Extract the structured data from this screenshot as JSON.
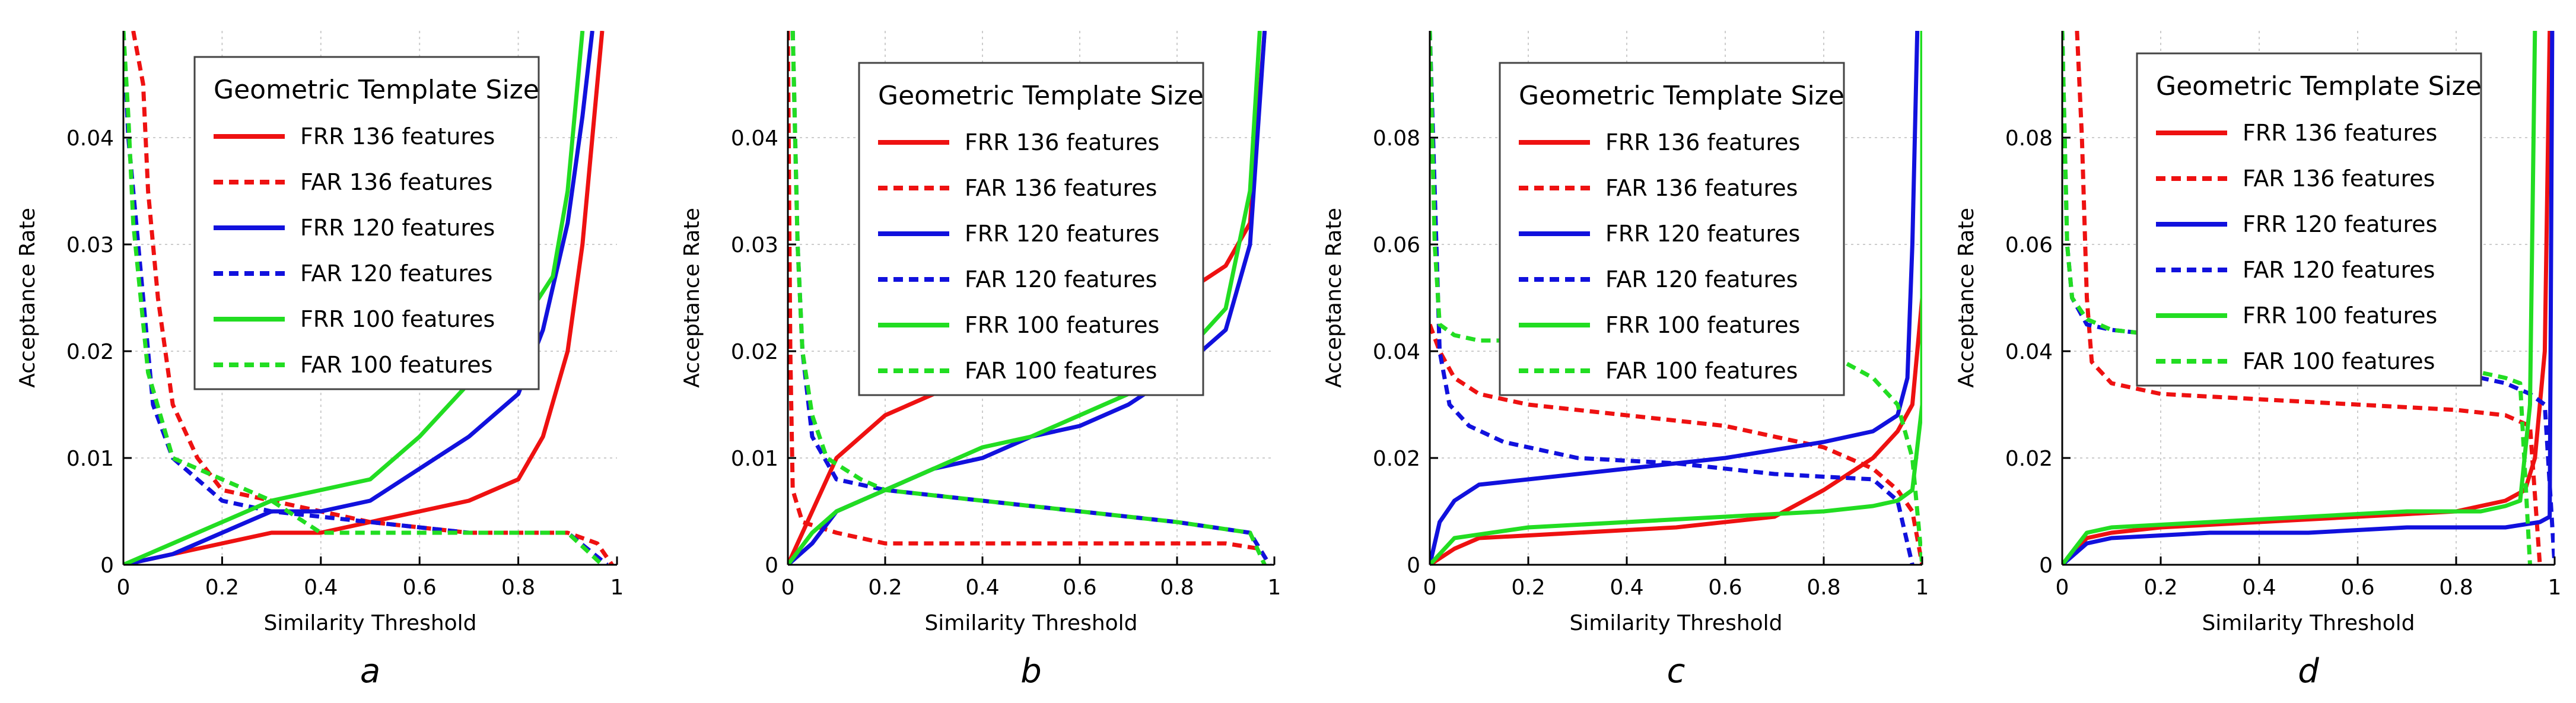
{
  "legend_title": "Geometric Template Size",
  "series_styles": {
    "FRR 136 features": {
      "color": "#ee1111",
      "dash": false
    },
    "FAR 136 features": {
      "color": "#ee1111",
      "dash": true
    },
    "FRR 120 features": {
      "color": "#1111dd",
      "dash": false
    },
    "FAR 120 features": {
      "color": "#1111dd",
      "dash": true
    },
    "FRR 100 features": {
      "color": "#22dd22",
      "dash": false
    },
    "FAR 100 features": {
      "color": "#22dd22",
      "dash": true
    }
  },
  "chart_data": [
    {
      "type": "line",
      "panel_label": "a",
      "xlabel": "Similarity Threshold",
      "ylabel": "Acceptance Rate",
      "xlim": [
        0,
        1
      ],
      "ylim": [
        0,
        0.05
      ],
      "xticks": [
        "0",
        "0.2",
        "0.4",
        "0.6",
        "0.8",
        "1"
      ],
      "yticks": [
        "0",
        "0.01",
        "0.02",
        "0.03",
        "0.04"
      ],
      "legend_title": "Geometric Template Size",
      "series": [
        {
          "name": "FRR 136 features",
          "x": [
            0,
            0.1,
            0.2,
            0.3,
            0.4,
            0.5,
            0.6,
            0.7,
            0.8,
            0.85,
            0.9,
            0.93,
            0.95,
            0.97
          ],
          "y": [
            0,
            0.001,
            0.002,
            0.003,
            0.003,
            0.004,
            0.005,
            0.006,
            0.008,
            0.012,
            0.02,
            0.03,
            0.04,
            0.05
          ]
        },
        {
          "name": "FAR 136 features",
          "x": [
            0.02,
            0.04,
            0.05,
            0.07,
            0.1,
            0.15,
            0.2,
            0.3,
            0.5,
            0.7,
            0.9,
            0.96,
            0.99
          ],
          "y": [
            0.05,
            0.045,
            0.035,
            0.025,
            0.015,
            0.01,
            0.007,
            0.006,
            0.004,
            0.003,
            0.003,
            0.002,
            0
          ]
        },
        {
          "name": "FRR 120 features",
          "x": [
            0,
            0.1,
            0.2,
            0.3,
            0.4,
            0.5,
            0.6,
            0.7,
            0.8,
            0.85,
            0.9,
            0.93,
            0.95
          ],
          "y": [
            0,
            0.001,
            0.003,
            0.005,
            0.005,
            0.006,
            0.009,
            0.012,
            0.016,
            0.022,
            0.032,
            0.042,
            0.05
          ]
        },
        {
          "name": "FAR 120 features",
          "x": [
            0,
            0.01,
            0.02,
            0.04,
            0.06,
            0.1,
            0.15,
            0.2,
            0.3,
            0.5,
            0.7,
            0.9,
            0.98
          ],
          "y": [
            0.05,
            0.04,
            0.035,
            0.025,
            0.015,
            0.01,
            0.008,
            0.006,
            0.005,
            0.004,
            0.003,
            0.003,
            0
          ]
        },
        {
          "name": "FRR 100 features",
          "x": [
            0,
            0.1,
            0.2,
            0.3,
            0.4,
            0.5,
            0.6,
            0.7,
            0.8,
            0.87,
            0.9,
            0.93
          ],
          "y": [
            0,
            0.002,
            0.004,
            0.006,
            0.007,
            0.008,
            0.012,
            0.017,
            0.022,
            0.027,
            0.035,
            0.05
          ]
        },
        {
          "name": "FAR 100 features",
          "x": [
            0,
            0.01,
            0.02,
            0.05,
            0.1,
            0.2,
            0.3,
            0.4,
            0.5,
            0.7,
            0.9,
            0.97
          ],
          "y": [
            0.05,
            0.042,
            0.032,
            0.018,
            0.01,
            0.008,
            0.006,
            0.003,
            0.003,
            0.003,
            0.003,
            0
          ]
        }
      ]
    },
    {
      "type": "line",
      "panel_label": "b",
      "xlabel": "Similarity Threshold",
      "ylabel": "Acceptance Rate",
      "xlim": [
        0,
        1
      ],
      "ylim": [
        0,
        0.05
      ],
      "xticks": [
        "0",
        "0.2",
        "0.4",
        "0.6",
        "0.8",
        "1"
      ],
      "yticks": [
        "0",
        "0.01",
        "0.02",
        "0.03",
        "0.04"
      ],
      "legend_title": "Geometric Template Size",
      "series": [
        {
          "name": "FRR 136 features",
          "x": [
            0,
            0.02,
            0.05,
            0.1,
            0.2,
            0.3,
            0.5,
            0.7,
            0.8,
            0.9,
            0.95,
            0.98
          ],
          "y": [
            0,
            0.002,
            0.005,
            0.01,
            0.014,
            0.016,
            0.018,
            0.022,
            0.025,
            0.028,
            0.032,
            0.05
          ]
        },
        {
          "name": "FAR 136 features",
          "x": [
            0,
            0.005,
            0.01,
            0.03,
            0.1,
            0.2,
            0.5,
            0.9,
            0.97,
            0.99
          ],
          "y": [
            0.05,
            0.02,
            0.007,
            0.004,
            0.003,
            0.002,
            0.002,
            0.002,
            0.0015,
            0
          ]
        },
        {
          "name": "FRR 120 features",
          "x": [
            0,
            0.05,
            0.1,
            0.2,
            0.3,
            0.4,
            0.5,
            0.6,
            0.7,
            0.8,
            0.9,
            0.95,
            0.98
          ],
          "y": [
            0,
            0.002,
            0.005,
            0.007,
            0.009,
            0.01,
            0.012,
            0.013,
            0.015,
            0.018,
            0.022,
            0.03,
            0.05
          ]
        },
        {
          "name": "FAR 120 features",
          "x": [
            0.01,
            0.02,
            0.03,
            0.05,
            0.1,
            0.2,
            0.4,
            0.6,
            0.8,
            0.95,
            0.99
          ],
          "y": [
            0.05,
            0.03,
            0.02,
            0.012,
            0.008,
            0.007,
            0.006,
            0.005,
            0.004,
            0.003,
            0
          ]
        },
        {
          "name": "FRR 100 features",
          "x": [
            0,
            0.05,
            0.1,
            0.2,
            0.3,
            0.4,
            0.5,
            0.6,
            0.7,
            0.8,
            0.9,
            0.95,
            0.97
          ],
          "y": [
            0,
            0.003,
            0.005,
            0.007,
            0.009,
            0.011,
            0.012,
            0.014,
            0.016,
            0.019,
            0.024,
            0.035,
            0.05
          ]
        },
        {
          "name": "FAR 100 features",
          "x": [
            0.01,
            0.02,
            0.03,
            0.05,
            0.08,
            0.15,
            0.2,
            0.4,
            0.6,
            0.8,
            0.95,
            0.98
          ],
          "y": [
            0.05,
            0.03,
            0.02,
            0.014,
            0.01,
            0.008,
            0.007,
            0.006,
            0.005,
            0.004,
            0.003,
            0
          ]
        }
      ]
    },
    {
      "type": "line",
      "panel_label": "c",
      "xlabel": "Similarity Threshold",
      "ylabel": "Acceptance Rate",
      "xlim": [
        0,
        1
      ],
      "ylim": [
        0,
        0.1
      ],
      "xticks": [
        "0",
        "0.2",
        "0.4",
        "0.6",
        "0.8",
        "1"
      ],
      "yticks": [
        "0",
        "0.02",
        "0.04",
        "0.06",
        "0.08"
      ],
      "legend_title": "Geometric Template Size",
      "series": [
        {
          "name": "FRR 136 features",
          "x": [
            0,
            0.05,
            0.1,
            0.3,
            0.5,
            0.7,
            0.8,
            0.9,
            0.95,
            0.98,
            1.0
          ],
          "y": [
            0,
            0.003,
            0.005,
            0.006,
            0.007,
            0.009,
            0.014,
            0.02,
            0.025,
            0.03,
            0.05
          ]
        },
        {
          "name": "FAR 136 features",
          "x": [
            0,
            0.02,
            0.05,
            0.1,
            0.2,
            0.4,
            0.6,
            0.8,
            0.9,
            0.95,
            0.98,
            1.0
          ],
          "y": [
            0.045,
            0.04,
            0.035,
            0.032,
            0.03,
            0.028,
            0.026,
            0.022,
            0.018,
            0.014,
            0.01,
            0
          ]
        },
        {
          "name": "FRR 120 features",
          "x": [
            0,
            0.02,
            0.05,
            0.1,
            0.2,
            0.4,
            0.6,
            0.8,
            0.9,
            0.95,
            0.97,
            0.98,
            0.99
          ],
          "y": [
            0,
            0.008,
            0.012,
            0.015,
            0.016,
            0.018,
            0.02,
            0.023,
            0.025,
            0.028,
            0.035,
            0.06,
            0.1
          ]
        },
        {
          "name": "FAR 120 features",
          "x": [
            0,
            0.01,
            0.02,
            0.04,
            0.08,
            0.15,
            0.3,
            0.5,
            0.7,
            0.9,
            0.95,
            0.98
          ],
          "y": [
            0.1,
            0.07,
            0.04,
            0.03,
            0.026,
            0.023,
            0.02,
            0.019,
            0.017,
            0.016,
            0.012,
            0
          ]
        },
        {
          "name": "FRR 100 features",
          "x": [
            0,
            0.05,
            0.2,
            0.4,
            0.6,
            0.8,
            0.9,
            0.95,
            0.98,
            1.0,
            1.0
          ],
          "y": [
            0,
            0.005,
            0.007,
            0.008,
            0.009,
            0.01,
            0.011,
            0.012,
            0.014,
            0.03,
            0.1
          ]
        },
        {
          "name": "FAR 100 features",
          "x": [
            0,
            0.01,
            0.02,
            0.05,
            0.1,
            0.3,
            0.5,
            0.7,
            0.8,
            0.9,
            0.95,
            0.98,
            1.0
          ],
          "y": [
            0.1,
            0.06,
            0.045,
            0.043,
            0.042,
            0.042,
            0.042,
            0.042,
            0.04,
            0.035,
            0.03,
            0.02,
            0
          ]
        }
      ]
    },
    {
      "type": "line",
      "panel_label": "d",
      "xlabel": "Similarity Threshold",
      "ylabel": "Acceptance Rate",
      "xlim": [
        0,
        1
      ],
      "ylim": [
        0,
        0.1
      ],
      "xticks": [
        "0",
        "0.2",
        "0.4",
        "0.6",
        "0.8",
        "1"
      ],
      "yticks": [
        "0",
        "0.02",
        "0.04",
        "0.06",
        "0.08"
      ],
      "legend_title": "Geometric Template Size",
      "series": [
        {
          "name": "FRR 136 features",
          "x": [
            0,
            0.05,
            0.1,
            0.2,
            0.4,
            0.6,
            0.8,
            0.9,
            0.94,
            0.96,
            0.98,
            0.99
          ],
          "y": [
            0,
            0.005,
            0.006,
            0.007,
            0.008,
            0.009,
            0.01,
            0.012,
            0.014,
            0.02,
            0.04,
            0.1
          ]
        },
        {
          "name": "FAR 136 features",
          "x": [
            0.03,
            0.04,
            0.05,
            0.06,
            0.1,
            0.2,
            0.4,
            0.6,
            0.8,
            0.9,
            0.95,
            0.97
          ],
          "y": [
            0.1,
            0.08,
            0.05,
            0.038,
            0.034,
            0.032,
            0.031,
            0.03,
            0.029,
            0.028,
            0.026,
            0
          ]
        },
        {
          "name": "FRR 120 features",
          "x": [
            0,
            0.05,
            0.1,
            0.3,
            0.5,
            0.7,
            0.9,
            0.97,
            0.99,
            0.995
          ],
          "y": [
            0,
            0.004,
            0.005,
            0.006,
            0.006,
            0.007,
            0.007,
            0.008,
            0.009,
            0.1
          ]
        },
        {
          "name": "FAR 120 features",
          "x": [
            0,
            0.01,
            0.02,
            0.05,
            0.1,
            0.2,
            0.4,
            0.6,
            0.8,
            0.9,
            0.95,
            0.98,
            1.0
          ],
          "y": [
            0.1,
            0.06,
            0.05,
            0.045,
            0.044,
            0.043,
            0.04,
            0.038,
            0.036,
            0.034,
            0.032,
            0.03,
            0
          ]
        },
        {
          "name": "FRR 100 features",
          "x": [
            0,
            0.05,
            0.1,
            0.3,
            0.5,
            0.7,
            0.85,
            0.9,
            0.93,
            0.95,
            0.96
          ],
          "y": [
            0,
            0.006,
            0.007,
            0.008,
            0.009,
            0.01,
            0.01,
            0.011,
            0.012,
            0.03,
            0.1
          ]
        },
        {
          "name": "FAR 100 features",
          "x": [
            0,
            0.01,
            0.02,
            0.05,
            0.1,
            0.3,
            0.5,
            0.7,
            0.85,
            0.9,
            0.93,
            0.95
          ],
          "y": [
            0.1,
            0.06,
            0.05,
            0.046,
            0.044,
            0.042,
            0.04,
            0.038,
            0.036,
            0.035,
            0.034,
            0
          ]
        }
      ]
    }
  ]
}
